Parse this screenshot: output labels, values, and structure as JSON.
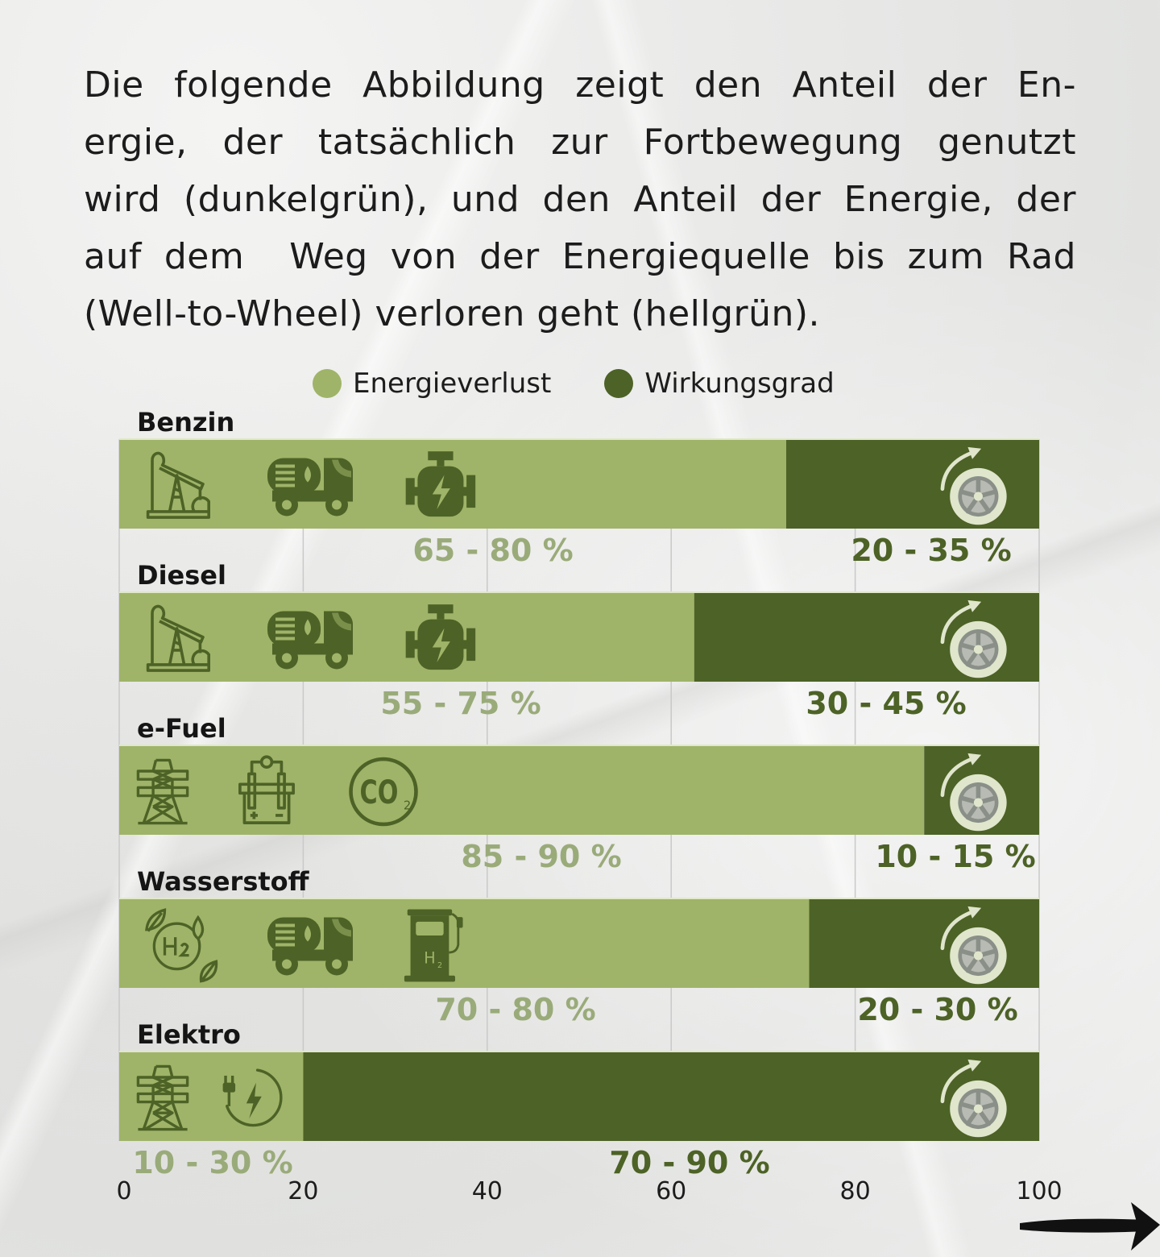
{
  "intro_text": "Die folgende Abbildung zeigt den Anteil der Energie, der tatsächlich zur Fortbewegung genutzt wird (dunkelgrün), und den Anteil der Energie, der auf dem Weg von der Energiequelle bis zum Rad (Well-to-Wheel) verloren geht (hellgrün).",
  "intro_lines": [
    "Die folgende Abbildung zeigt den Anteil der En-",
    "ergie, der tatsächlich zur Fortbewegung genutzt",
    "wird (dunkelgrün), und den Anteil der Energie, der",
    "auf dem  Weg von der Energiequelle bis zum Rad",
    "(Well-to-Wheel) verloren geht (hellgrün)."
  ],
  "colors": {
    "loss": "#9fb468",
    "efficiency": "#4d6226",
    "loss_text": "#9aab7a",
    "efficiency_text": "#4d6226",
    "icon": "#4d6226",
    "grid": "#c9c9c9",
    "tire": "#dfe6cc",
    "rim": "#8a8f88"
  },
  "legend": [
    {
      "label": "Energieverlust",
      "color_key": "loss"
    },
    {
      "label": "Wirkungsgrad",
      "color_key": "efficiency"
    }
  ],
  "chart_data": {
    "type": "bar",
    "orientation": "horizontal",
    "stacked": true,
    "title": "",
    "xlabel": "",
    "ylabel": "",
    "xlim": [
      0,
      100
    ],
    "x_ticks": [
      0,
      20,
      40,
      60,
      80,
      100
    ],
    "grid": true,
    "legend_position": "top-center",
    "categories": [
      "Benzin",
      "Diesel",
      "e-Fuel",
      "Wasserstoff",
      "Elektro"
    ],
    "series": [
      {
        "name": "Energieverlust",
        "values": [
          72.5,
          62.5,
          87.5,
          75,
          20
        ],
        "range_labels": [
          "65 - 80 %",
          "55 - 75 %",
          "85 - 90 %",
          "70 - 80 %",
          "10 - 30 %"
        ]
      },
      {
        "name": "Wirkungsgrad",
        "values": [
          27.5,
          37.5,
          12.5,
          25,
          80
        ],
        "range_labels": [
          "20 - 35 %",
          "30 - 45 %",
          "10 - 15 %",
          "20 - 30 %",
          "70 - 90 %"
        ]
      }
    ],
    "icons": [
      [
        "oil-pump-icon",
        "tanker-truck-icon",
        "engine-icon"
      ],
      [
        "oil-pump-icon",
        "tanker-truck-icon",
        "engine-icon"
      ],
      [
        "power-pylon-icon",
        "electrolyzer-icon",
        "co2-icon"
      ],
      [
        "green-hydrogen-icon",
        "tanker-truck-icon",
        "hydrogen-pump-icon"
      ],
      [
        "power-pylon-icon",
        "plug-charge-icon"
      ]
    ],
    "end_icon": "tire-icon"
  },
  "next_arrow_icon": "arrow-right-icon"
}
